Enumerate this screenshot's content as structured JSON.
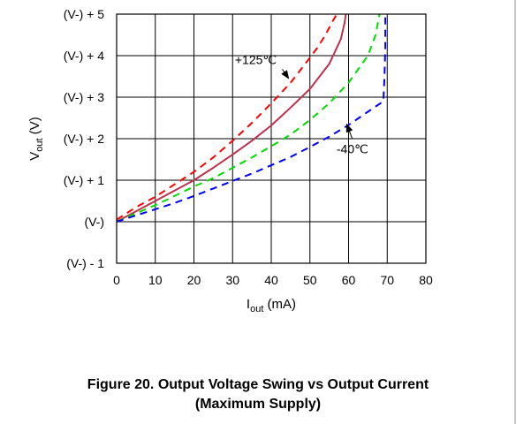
{
  "chart_data": {
    "type": "line",
    "title": "Figure 20. Output Voltage Swing vs Output Current",
    "subtitle": "(Maximum Supply)",
    "xlabel": "I",
    "xlabel_sub": "out",
    "xlabel_unit": " (mA)",
    "ylabel": "V",
    "ylabel_sub": "out",
    "ylabel_unit": " (V)",
    "xlim": [
      0,
      80
    ],
    "ylim": [
      -1,
      5
    ],
    "grid": true,
    "x_ticks": [
      0,
      10,
      20,
      30,
      40,
      50,
      60,
      70,
      80
    ],
    "x_tick_labels": [
      "0",
      "10",
      "20",
      "30",
      "40",
      "50",
      "60",
      "70",
      "80"
    ],
    "y_ticks": [
      5,
      4,
      3,
      2,
      1,
      0,
      -1
    ],
    "y_tick_labels": [
      "(V-) + 5",
      "(V-) + 4",
      "(V-) + 3",
      "(V-) + 2",
      "(V-) + 1",
      "(V-)",
      "(V-) -  1"
    ],
    "series": [
      {
        "name": "+125℃",
        "color": "#ff0000",
        "dash": "dashed",
        "x": [
          0,
          5,
          10,
          15,
          20,
          25,
          30,
          35,
          40,
          45,
          50,
          52,
          54,
          56,
          57
        ],
        "y": [
          0.05,
          0.35,
          0.6,
          0.9,
          1.2,
          1.55,
          1.95,
          2.38,
          2.85,
          3.35,
          3.95,
          4.2,
          4.5,
          4.85,
          5.0
        ]
      },
      {
        "name": "",
        "color": "#c0304a",
        "dash": "solid",
        "x": [
          0,
          5,
          10,
          15,
          20,
          25,
          30,
          35,
          40,
          45,
          50,
          55,
          58,
          59,
          59.3
        ],
        "y": [
          0.0,
          0.25,
          0.5,
          0.75,
          1.0,
          1.3,
          1.62,
          1.95,
          2.32,
          2.75,
          3.2,
          3.8,
          4.4,
          4.8,
          5.0
        ]
      },
      {
        "name": "",
        "color": "#00dd00",
        "dash": "dashed",
        "x": [
          0,
          5,
          10,
          15,
          20,
          25,
          30,
          35,
          40,
          45,
          50,
          55,
          60,
          65,
          67,
          68
        ],
        "y": [
          0.0,
          0.2,
          0.4,
          0.62,
          0.85,
          1.05,
          1.3,
          1.55,
          1.82,
          2.1,
          2.45,
          2.85,
          3.35,
          4.0,
          4.5,
          5.0
        ]
      },
      {
        "name": "-40℃",
        "color": "#0000ff",
        "dash": "dashed",
        "x": [
          0,
          5,
          10,
          15,
          20,
          25,
          30,
          35,
          40,
          45,
          50,
          55,
          60,
          65,
          69,
          69.3,
          69.5,
          69.5
        ],
        "y": [
          0.0,
          0.15,
          0.3,
          0.45,
          0.62,
          0.8,
          0.98,
          1.16,
          1.36,
          1.56,
          1.8,
          2.05,
          2.33,
          2.65,
          2.9,
          3.5,
          4.2,
          5.0
        ]
      }
    ],
    "annotations": [
      {
        "text": "+125℃",
        "x": 36,
        "y": 3.8,
        "arrow_to_x": 44.5,
        "arrow_to_y": 3.45
      },
      {
        "text": "-40℃",
        "x": 61,
        "y": 1.65,
        "arrow_to_x": 59.5,
        "arrow_to_y": 2.35
      }
    ]
  }
}
